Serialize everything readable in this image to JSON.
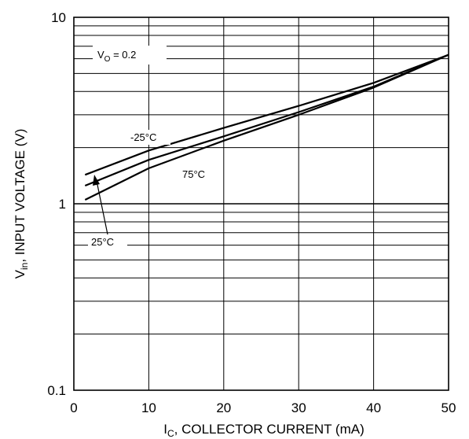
{
  "chart_data": {
    "type": "line",
    "xlabel": "I",
    "xlabel_sub": "C",
    "xlabel_rest": ", COLLECTOR CURRENT (mA)",
    "ylabel": "V",
    "ylabel_sub": "in",
    "ylabel_rest": ", INPUT VOLTAGE (V)",
    "xlim": [
      0,
      50
    ],
    "ylim": [
      0.1,
      10
    ],
    "yscale": "log",
    "grid": true,
    "x_ticks": [
      "0",
      "10",
      "20",
      "30",
      "40",
      "50"
    ],
    "y_ticks": [
      "0.1",
      "1",
      "10"
    ],
    "annotations": {
      "vo_prefix": "V",
      "vo_sub": "O",
      "vo_rest": " = 0.2",
      "t_minus25": "-25°C",
      "t_75": "75°C",
      "t_25": "25°C"
    },
    "series": [
      {
        "name": "-25°C",
        "x": [
          1.5,
          10,
          20,
          30,
          40,
          50
        ],
        "y": [
          1.43,
          1.93,
          2.55,
          3.35,
          4.45,
          6.3
        ]
      },
      {
        "name": "25°C",
        "x": [
          1.5,
          10,
          20,
          30,
          40,
          50
        ],
        "y": [
          1.25,
          1.72,
          2.3,
          3.1,
          4.25,
          6.3
        ]
      },
      {
        "name": "75°C",
        "x": [
          1.5,
          10,
          20,
          30,
          40,
          50
        ],
        "y": [
          1.05,
          1.55,
          2.18,
          3.0,
          4.2,
          6.3
        ]
      }
    ]
  }
}
